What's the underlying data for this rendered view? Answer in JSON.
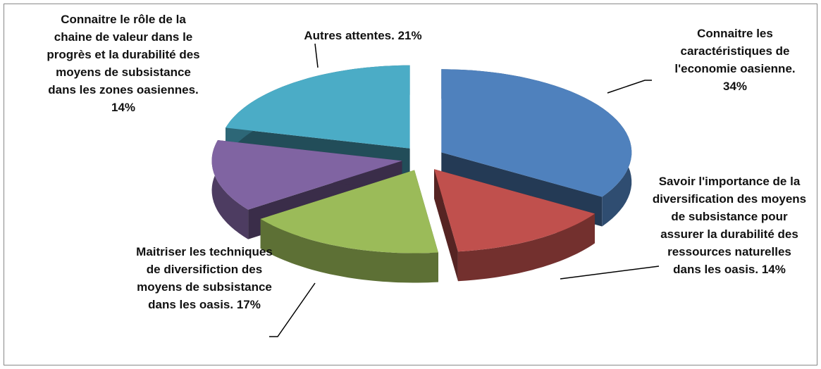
{
  "chart_data": {
    "type": "pie3d",
    "categories": [
      "Connaitre les caractéristiques de l'economie oasienne.",
      "Savoir l'importance de la diversification des moyens de subsistance pour assurer la durabilité des ressources naturelles dans les oasis.",
      "Maitriser les techniques de diversifiction des moyens de subsistance dans les oasis.",
      "Connaitre le rôle de la chaine de valeur dans le progrès et la durabilité des moyens de subsistance dans les zones oasiennes.",
      "Autres attentes."
    ],
    "values": [
      34,
      14,
      17,
      14,
      21
    ],
    "value_labels": [
      "34%",
      "14%",
      "17%",
      "14%",
      "21%"
    ],
    "colors": [
      "#4f81bd",
      "#c0504d",
      "#9bbb59",
      "#8064a2",
      "#4bacc6"
    ]
  }
}
